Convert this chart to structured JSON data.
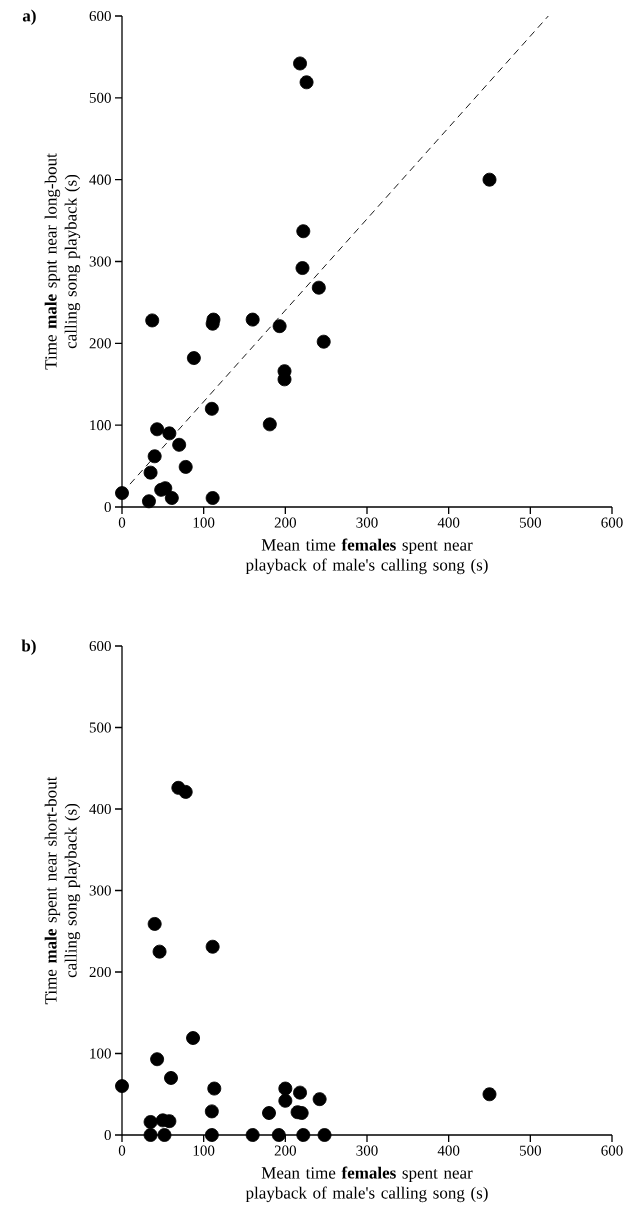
{
  "chart_data": [
    {
      "type": "scatter",
      "title": "a)",
      "xlabel": "Mean time **females** spent near playback of male's calling song (s)",
      "ylabel": "Time **male** spnt near long-bout calling song playback (s)",
      "xlim": [
        0,
        600
      ],
      "ylim": [
        0,
        600
      ],
      "xticks": [
        0,
        100,
        200,
        300,
        400,
        500,
        600
      ],
      "yticks": [
        0,
        100,
        200,
        300,
        400,
        500,
        600
      ],
      "series": [
        {
          "marker": "circle",
          "color": "#000000",
          "x": [
            218,
            226,
            450,
            222,
            221,
            241,
            37,
            112,
            111,
            160,
            193,
            247,
            88,
            199,
            199,
            110,
            181,
            43,
            58,
            70,
            40,
            78,
            35,
            0,
            53,
            48,
            61,
            33,
            111
          ],
          "values": [
            542,
            519,
            400,
            337,
            292,
            268,
            228,
            229,
            224,
            229,
            221,
            202,
            182,
            166,
            156,
            120,
            101,
            95,
            90,
            76,
            62,
            49,
            42,
            17,
            23,
            21,
            11,
            7,
            11
          ]
        },
        {
          "type": "line",
          "marker": "none",
          "line_style": "dashed",
          "color": "#000000",
          "x": [
            0,
            522
          ],
          "values": [
            17,
            600
          ]
        }
      ]
    },
    {
      "type": "scatter",
      "title": "b)",
      "xlabel": "Mean time **females** spent near playback of male's calling song (s)",
      "ylabel": "Time **male** spent near short-bout calling song playback (s)",
      "xlim": [
        0,
        600
      ],
      "ylim": [
        0,
        600
      ],
      "xticks": [
        0,
        100,
        200,
        300,
        400,
        500,
        600
      ],
      "yticks": [
        0,
        100,
        200,
        300,
        400,
        500,
        600
      ],
      "series": [
        {
          "marker": "circle",
          "color": "#000000",
          "x": [
            69,
            78,
            40,
            46,
            111,
            87,
            43,
            0,
            60,
            113,
            200,
            200,
            218,
            242,
            110,
            180,
            215,
            220,
            450,
            35,
            50,
            58,
            35,
            52,
            110,
            160,
            192,
            222,
            248
          ],
          "values": [
            426,
            421,
            259,
            225,
            231,
            119,
            93,
            60,
            70,
            57,
            57,
            42,
            52,
            44,
            29,
            27,
            28,
            27,
            50,
            16,
            18,
            17,
            0,
            0,
            0,
            0,
            0,
            0,
            0
          ]
        }
      ]
    }
  ]
}
